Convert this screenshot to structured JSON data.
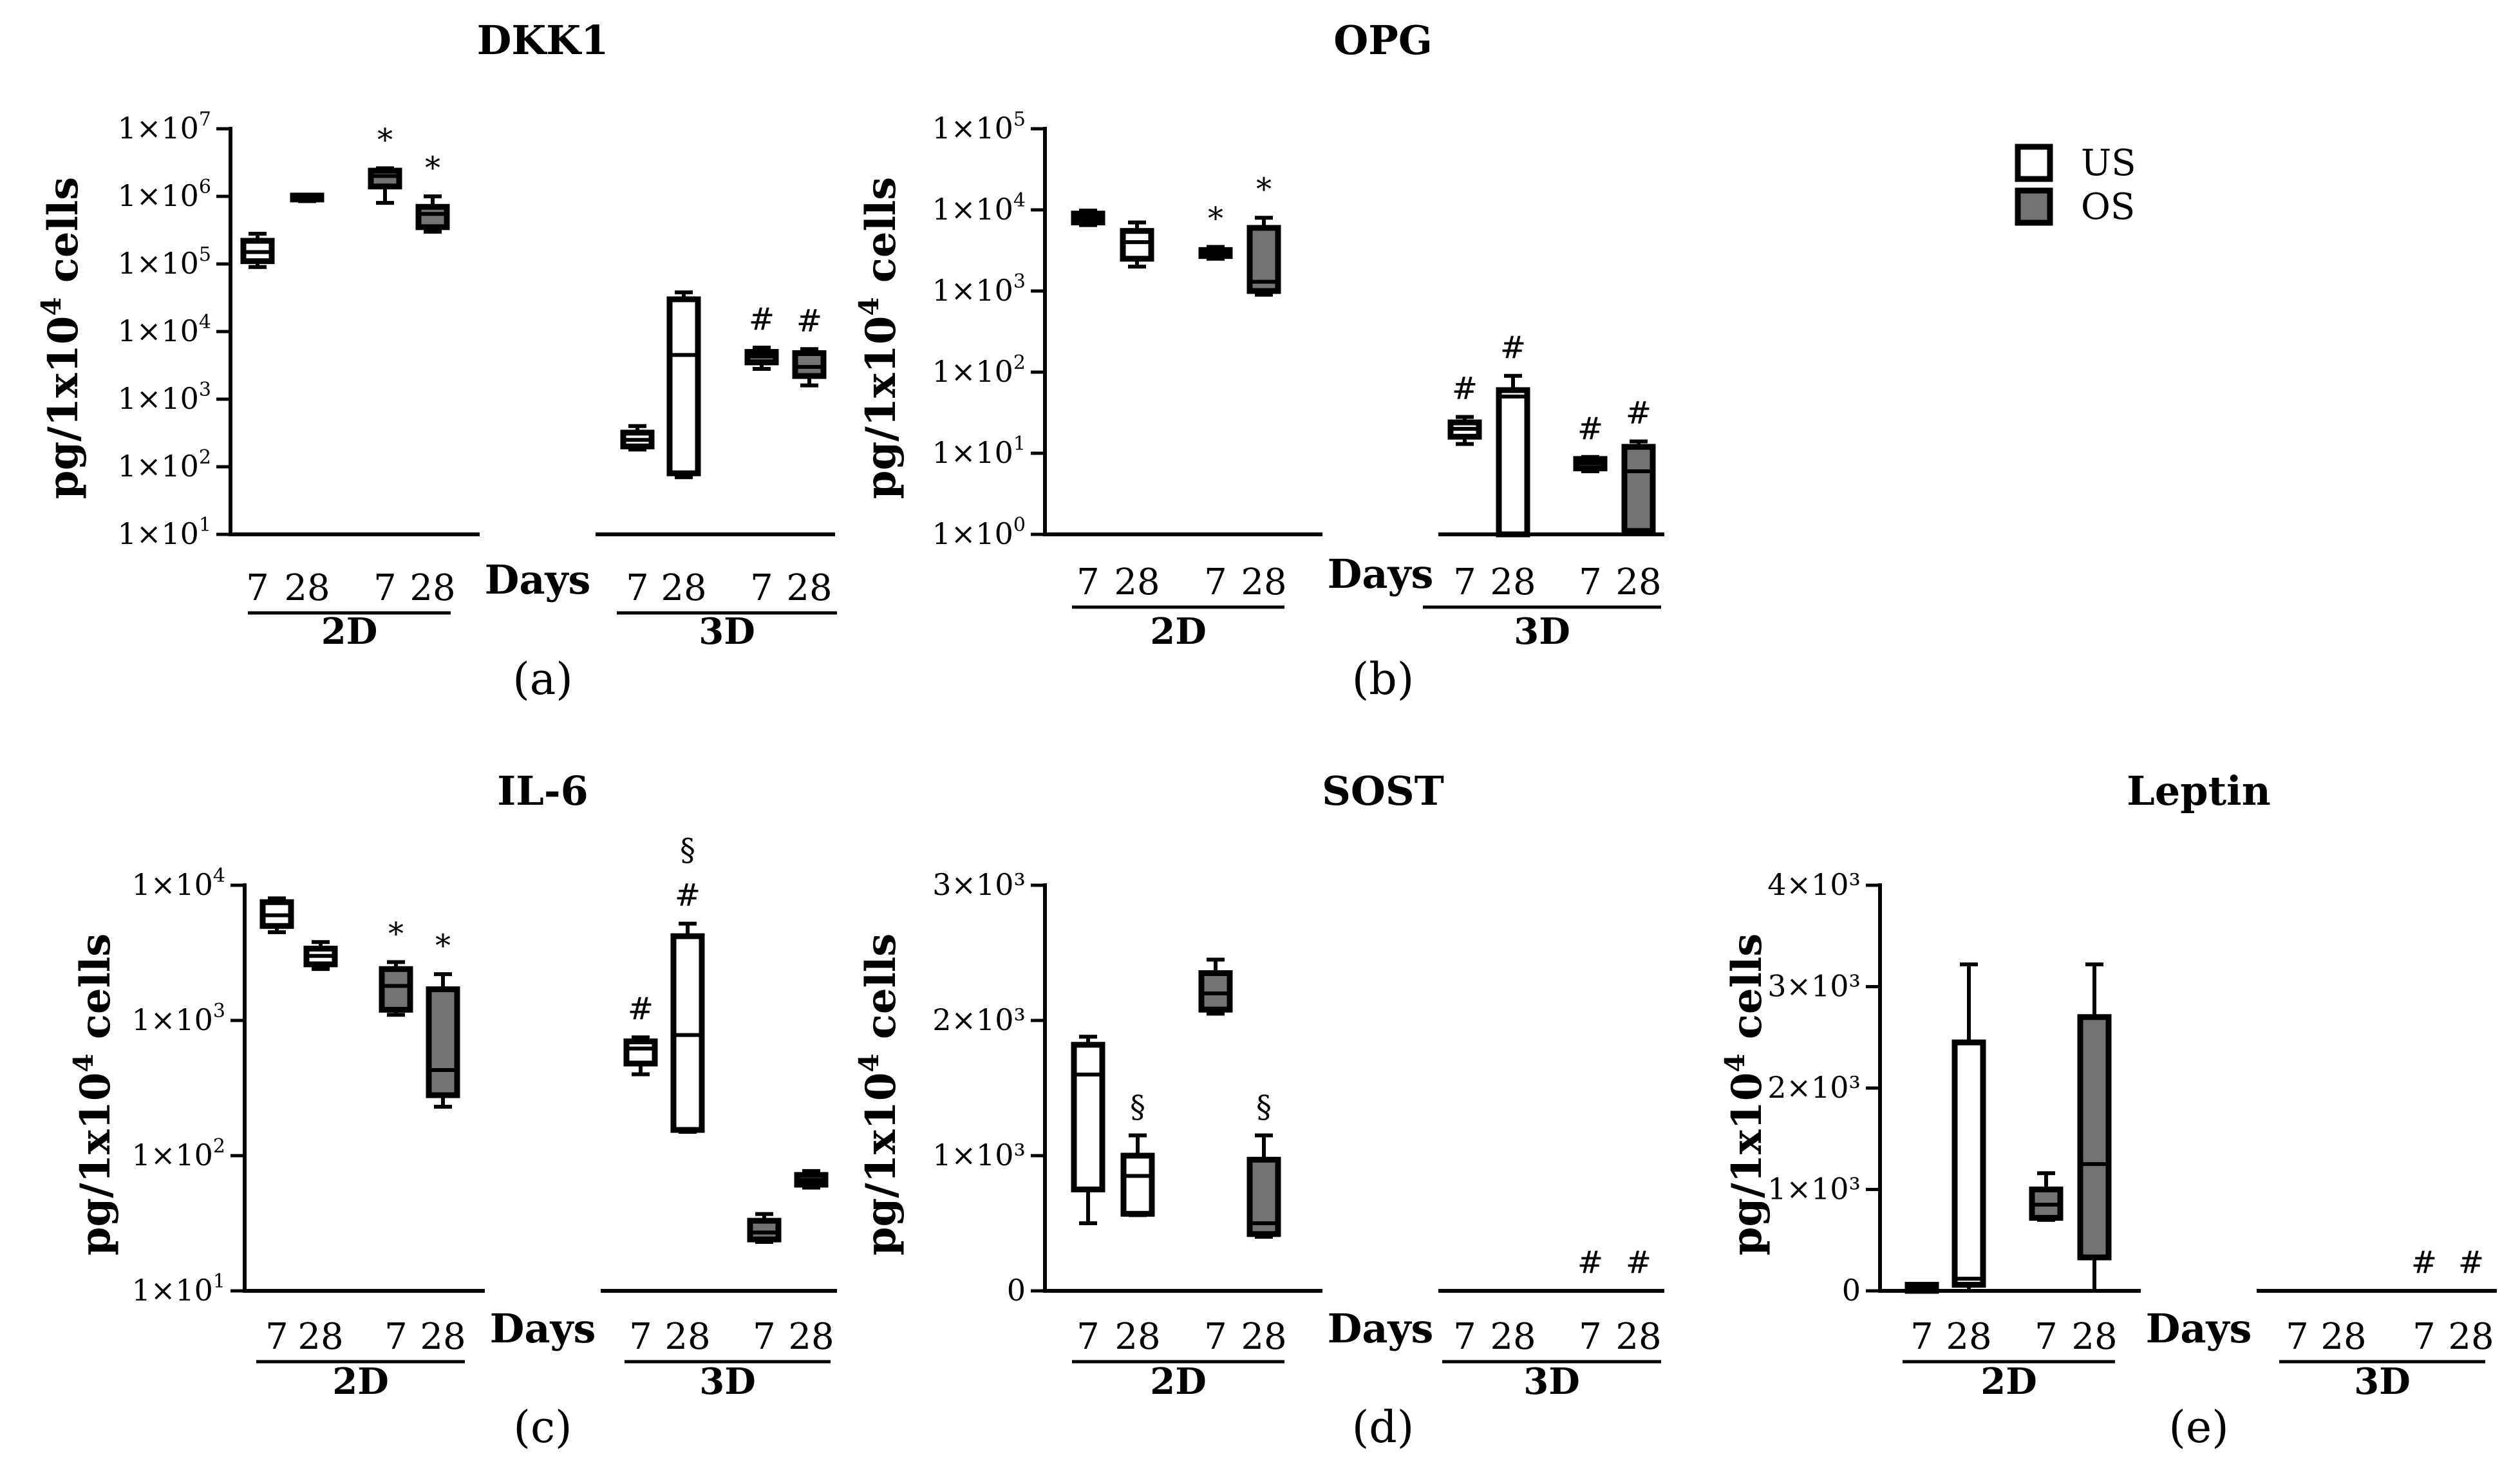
{
  "figure": {
    "legend": [
      {
        "label": "US",
        "fill": "#ffffff"
      },
      {
        "label": "OS",
        "fill": "#737373"
      }
    ]
  },
  "colors": {
    "us": "#ffffff",
    "os": "#737373",
    "stroke": "#000000"
  },
  "chart_data": [
    {
      "type": "box",
      "title": "DKK1",
      "panel_label": "(a)",
      "ylabel": "pg/1x10^4 cells",
      "yscale": "log",
      "ylim_exp": [
        1,
        7
      ],
      "yticks": [
        {
          "exp": 7
        },
        {
          "exp": 6
        },
        {
          "exp": 5
        },
        {
          "exp": 4
        },
        {
          "exp": 3
        },
        {
          "exp": 2
        },
        {
          "exp": 1
        }
      ],
      "xlabel": "Days",
      "groups": [
        {
          "label": "2D",
          "days": [
            "7",
            "28",
            "7",
            "28"
          ]
        },
        {
          "label": "3D",
          "days": [
            "7",
            "28",
            "7",
            "28"
          ]
        }
      ],
      "boxes": [
        {
          "group": "2D",
          "day": "7",
          "series": "US",
          "whisker_low": 90000,
          "q1": 110000,
          "median": 150000,
          "q3": 220000,
          "whisker_high": 280000,
          "mark": ""
        },
        {
          "group": "2D",
          "day": "28",
          "series": "US",
          "whisker_low": 850000,
          "q1": 900000,
          "median": 950000,
          "q3": 1000000,
          "whisker_high": 1050000,
          "mark": ""
        },
        {
          "group": "2D",
          "day": "7",
          "series": "OS",
          "whisker_low": 800000,
          "q1": 1400000,
          "median": 2000000,
          "q3": 2400000,
          "whisker_high": 2600000,
          "mark": "*"
        },
        {
          "group": "2D",
          "day": "28",
          "series": "OS",
          "whisker_low": 300000,
          "q1": 350000,
          "median": 550000,
          "q3": 700000,
          "whisker_high": 1000000,
          "mark": "*"
        },
        {
          "group": "3D",
          "day": "7",
          "series": "US",
          "whisker_low": 180,
          "q1": 200,
          "median": 250,
          "q3": 320,
          "whisker_high": 400,
          "mark": ""
        },
        {
          "group": "3D",
          "day": "28",
          "series": "US",
          "whisker_low": 70,
          "q1": 80,
          "median": 4500,
          "q3": 30000,
          "whisker_high": 38000,
          "mark": ""
        },
        {
          "group": "3D",
          "day": "7",
          "series": "OS",
          "whisker_low": 2800,
          "q1": 3500,
          "median": 4300,
          "q3": 5000,
          "whisker_high": 5800,
          "mark": "#"
        },
        {
          "group": "3D",
          "day": "28",
          "series": "OS",
          "whisker_low": 1600,
          "q1": 2200,
          "median": 3000,
          "q3": 4800,
          "whisker_high": 5500,
          "mark": "#"
        }
      ]
    },
    {
      "type": "box",
      "title": "OPG",
      "panel_label": "(b)",
      "ylabel": "pg/1x10^4 cells",
      "yscale": "log",
      "ylim_exp": [
        0,
        5
      ],
      "yticks": [
        {
          "exp": 5
        },
        {
          "exp": 4
        },
        {
          "exp": 3
        },
        {
          "exp": 2
        },
        {
          "exp": 1
        },
        {
          "exp": 0
        }
      ],
      "xlabel": "Days",
      "groups": [
        {
          "label": "2D",
          "days": [
            "7",
            "28",
            "7",
            "28"
          ]
        },
        {
          "label": "3D",
          "days": [
            "7",
            "28",
            "7",
            "28"
          ]
        }
      ],
      "boxes": [
        {
          "group": "2D",
          "day": "7",
          "series": "US",
          "whisker_low": 6500,
          "q1": 7000,
          "median": 8000,
          "q3": 9000,
          "whisker_high": 9800,
          "mark": ""
        },
        {
          "group": "2D",
          "day": "28",
          "series": "US",
          "whisker_low": 2000,
          "q1": 2500,
          "median": 4000,
          "q3": 5500,
          "whisker_high": 7000,
          "mark": ""
        },
        {
          "group": "2D",
          "day": "7",
          "series": "OS",
          "whisker_low": 2500,
          "q1": 2700,
          "median": 3000,
          "q3": 3200,
          "whisker_high": 3500,
          "mark": "*"
        },
        {
          "group": "2D",
          "day": "28",
          "series": "OS",
          "whisker_low": 900,
          "q1": 1000,
          "median": 1300,
          "q3": 6000,
          "whisker_high": 8000,
          "mark": "*"
        },
        {
          "group": "3D",
          "day": "7",
          "series": "US",
          "whisker_low": 13,
          "q1": 16,
          "median": 20,
          "q3": 24,
          "whisker_high": 28,
          "mark": "#"
        },
        {
          "group": "3D",
          "day": "28",
          "series": "US",
          "whisker_low": 1,
          "q1": 1,
          "median": 50,
          "q3": 60,
          "whisker_high": 90,
          "mark": "#"
        },
        {
          "group": "3D",
          "day": "7",
          "series": "OS",
          "whisker_low": 6,
          "q1": 6.5,
          "median": 7.5,
          "q3": 8.5,
          "whisker_high": 9,
          "mark": "#"
        },
        {
          "group": "3D",
          "day": "28",
          "series": "OS",
          "whisker_low": 1,
          "q1": 1.1,
          "median": 6,
          "q3": 12,
          "whisker_high": 14,
          "mark": "#"
        }
      ]
    },
    {
      "type": "box",
      "title": "IL-6",
      "panel_label": "(c)",
      "ylabel": "pg/1x10^4 cells",
      "yscale": "log",
      "ylim_exp": [
        1,
        4
      ],
      "yticks": [
        {
          "exp": 4
        },
        {
          "exp": 3
        },
        {
          "exp": 2
        },
        {
          "exp": 1
        }
      ],
      "xlabel": "Days",
      "groups": [
        {
          "label": "2D",
          "days": [
            "7",
            "28",
            "7",
            "28"
          ]
        },
        {
          "label": "3D",
          "days": [
            "7",
            "28",
            "7",
            "28"
          ]
        }
      ],
      "boxes": [
        {
          "group": "2D",
          "day": "7",
          "series": "US",
          "whisker_low": 4500,
          "q1": 5000,
          "median": 6000,
          "q3": 7500,
          "whisker_high": 8000,
          "mark": ""
        },
        {
          "group": "2D",
          "day": "28",
          "series": "US",
          "whisker_low": 2400,
          "q1": 2600,
          "median": 3000,
          "q3": 3400,
          "whisker_high": 3800,
          "mark": ""
        },
        {
          "group": "2D",
          "day": "7",
          "series": "OS",
          "whisker_low": 1100,
          "q1": 1200,
          "median": 1800,
          "q3": 2400,
          "whisker_high": 2700,
          "mark": "*"
        },
        {
          "group": "2D",
          "day": "28",
          "series": "OS",
          "whisker_low": 230,
          "q1": 280,
          "median": 430,
          "q3": 1700,
          "whisker_high": 2200,
          "mark": "*"
        },
        {
          "group": "3D",
          "day": "7",
          "series": "US",
          "whisker_low": 400,
          "q1": 480,
          "median": 620,
          "q3": 700,
          "whisker_high": 750,
          "mark": "#"
        },
        {
          "group": "3D",
          "day": "28",
          "series": "US",
          "whisker_low": 150,
          "q1": 155,
          "median": 780,
          "q3": 4200,
          "whisker_high": 5200,
          "mark": "§ #"
        },
        {
          "group": "3D",
          "day": "7",
          "series": "OS",
          "whisker_low": 23,
          "q1": 24,
          "median": 27,
          "q3": 33,
          "whisker_high": 37,
          "mark": ""
        },
        {
          "group": "3D",
          "day": "28",
          "series": "OS",
          "whisker_low": 58,
          "q1": 61,
          "median": 66,
          "q3": 72,
          "whisker_high": 77,
          "mark": ""
        }
      ]
    },
    {
      "type": "box",
      "title": "SOST",
      "panel_label": "(d)",
      "ylabel": "pg/1x10^4 cells",
      "yscale": "linear",
      "ylim": [
        0,
        3000
      ],
      "yticks": [
        {
          "value": 3000,
          "label": "3×10³"
        },
        {
          "value": 2000,
          "label": "2×10³"
        },
        {
          "value": 1000,
          "label": "1×10³"
        },
        {
          "value": 0,
          "label": "0"
        }
      ],
      "xlabel": "Days",
      "groups": [
        {
          "label": "2D",
          "days": [
            "7",
            "28",
            "7",
            "28"
          ]
        },
        {
          "label": "3D",
          "days": [
            "7",
            "28",
            "7",
            "28"
          ]
        }
      ],
      "boxes": [
        {
          "group": "2D",
          "day": "7",
          "series": "US",
          "whisker_low": 500,
          "q1": 750,
          "median": 1600,
          "q3": 1820,
          "whisker_high": 1880,
          "mark": ""
        },
        {
          "group": "2D",
          "day": "28",
          "series": "US",
          "whisker_low": 560,
          "q1": 570,
          "median": 850,
          "q3": 1000,
          "whisker_high": 1150,
          "mark": "§"
        },
        {
          "group": "2D",
          "day": "7",
          "series": "OS",
          "whisker_low": 2050,
          "q1": 2080,
          "median": 2200,
          "q3": 2350,
          "whisker_high": 2450,
          "mark": ""
        },
        {
          "group": "2D",
          "day": "28",
          "series": "OS",
          "whisker_low": 400,
          "q1": 420,
          "median": 500,
          "q3": 970,
          "whisker_high": 1150,
          "mark": "§"
        },
        {
          "group": "3D",
          "day": "7",
          "series": "US",
          "whisker_low": 0,
          "q1": 0,
          "median": 0,
          "q3": 0,
          "whisker_high": 0,
          "mark": ""
        },
        {
          "group": "3D",
          "day": "28",
          "series": "US",
          "whisker_low": 0,
          "q1": 0,
          "median": 0,
          "q3": 0,
          "whisker_high": 0,
          "mark": ""
        },
        {
          "group": "3D",
          "day": "7",
          "series": "OS",
          "whisker_low": 0,
          "q1": 0,
          "median": 0,
          "q3": 0,
          "whisker_high": 0,
          "mark": "#"
        },
        {
          "group": "3D",
          "day": "28",
          "series": "OS",
          "whisker_low": 0,
          "q1": 0,
          "median": 0,
          "q3": 0,
          "whisker_high": 0,
          "mark": "#"
        }
      ]
    },
    {
      "type": "box",
      "title": "Leptin",
      "panel_label": "(e)",
      "ylabel": "pg/1x10^4 cells",
      "yscale": "linear",
      "ylim": [
        0,
        4000
      ],
      "yticks": [
        {
          "value": 4000,
          "label": "4×10³"
        },
        {
          "value": 3000,
          "label": "3×10³"
        },
        {
          "value": 2000,
          "label": "2×10³"
        },
        {
          "value": 1000,
          "label": "1×10³"
        },
        {
          "value": 0,
          "label": "0"
        }
      ],
      "xlabel": "Days",
      "groups": [
        {
          "label": "2D",
          "days": [
            "7",
            "28",
            "7",
            "28"
          ]
        },
        {
          "label": "3D",
          "days": [
            "7",
            "28",
            "7",
            "28"
          ]
        }
      ],
      "boxes": [
        {
          "group": "2D",
          "day": "7",
          "series": "US",
          "whisker_low": 0,
          "q1": 0,
          "median": 30,
          "q3": 60,
          "whisker_high": 60,
          "mark": ""
        },
        {
          "group": "2D",
          "day": "28",
          "series": "US",
          "whisker_low": 0,
          "q1": 60,
          "median": 120,
          "q3": 2450,
          "whisker_high": 3220,
          "mark": ""
        },
        {
          "group": "2D",
          "day": "7",
          "series": "OS",
          "whisker_low": 700,
          "q1": 720,
          "median": 850,
          "q3": 1000,
          "whisker_high": 1160,
          "mark": ""
        },
        {
          "group": "2D",
          "day": "28",
          "series": "OS",
          "whisker_low": 0,
          "q1": 330,
          "median": 1250,
          "q3": 2700,
          "whisker_high": 3220,
          "mark": ""
        },
        {
          "group": "3D",
          "day": "7",
          "series": "US",
          "whisker_low": 0,
          "q1": 0,
          "median": 0,
          "q3": 0,
          "whisker_high": 0,
          "mark": ""
        },
        {
          "group": "3D",
          "day": "28",
          "series": "US",
          "whisker_low": 0,
          "q1": 0,
          "median": 0,
          "q3": 0,
          "whisker_high": 0,
          "mark": ""
        },
        {
          "group": "3D",
          "day": "7",
          "series": "OS",
          "whisker_low": 0,
          "q1": 0,
          "median": 0,
          "q3": 0,
          "whisker_high": 0,
          "mark": "#"
        },
        {
          "group": "3D",
          "day": "28",
          "series": "OS",
          "whisker_low": 0,
          "q1": 0,
          "median": 0,
          "q3": 0,
          "whisker_high": 0,
          "mark": "#"
        }
      ]
    }
  ]
}
